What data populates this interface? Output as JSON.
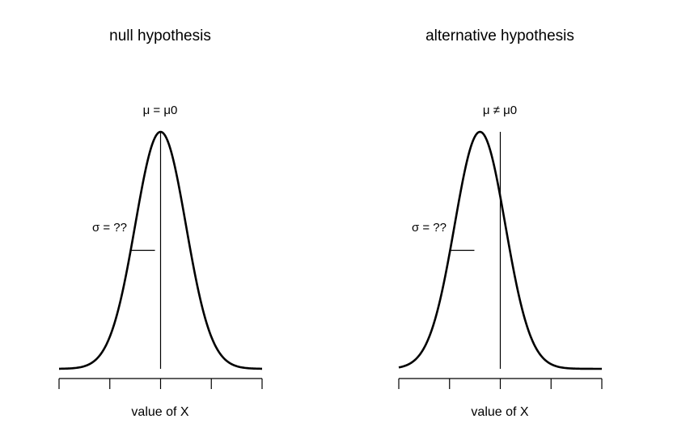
{
  "chart_data": [
    {
      "type": "line",
      "title": "null hypothesis",
      "xlabel": "value of X",
      "ylabel": "",
      "x_tick_count": 5,
      "tick_labels_shown": false,
      "curve": {
        "distribution": "normal",
        "mean": 0,
        "sd": 1,
        "xlim": [
          -4,
          4
        ]
      },
      "reference_line_x": 0,
      "annotations": {
        "mean_label": "μ = μ0",
        "sd_label": "σ = ??"
      },
      "grid": false,
      "line_color": "#000000"
    },
    {
      "type": "line",
      "title": "alternative hypothesis",
      "xlabel": "value of X",
      "ylabel": "",
      "x_tick_count": 5,
      "tick_labels_shown": false,
      "curve": {
        "distribution": "normal",
        "mean": -0.8,
        "sd": 1,
        "xlim": [
          -4,
          4
        ]
      },
      "reference_line_x": 0,
      "annotations": {
        "mean_label": "μ ≠ μ0",
        "sd_label": "σ = ??"
      },
      "grid": false,
      "line_color": "#000000"
    }
  ]
}
